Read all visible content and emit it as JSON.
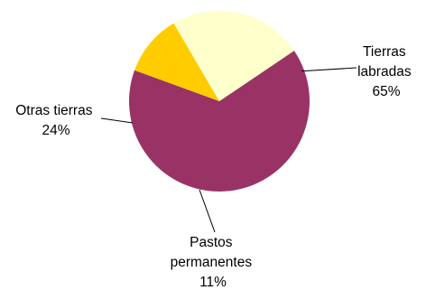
{
  "chart_data": {
    "type": "pie",
    "title": "",
    "slices": [
      {
        "name": "Tierras labradas",
        "label_lines": [
          "Tierras",
          "labradas"
        ],
        "value": 65,
        "value_label": "65%",
        "color": "#993366"
      },
      {
        "name": "Pastos permanentes",
        "label_lines": [
          "Pastos",
          "permanentes"
        ],
        "value": 11,
        "value_label": "11%",
        "color": "#ffcc00"
      },
      {
        "name": "Otras tierras",
        "label_lines": [
          "Otras tierras"
        ],
        "value": 24,
        "value_label": "24%",
        "color": "#ffffcc"
      }
    ],
    "legend": "none"
  }
}
